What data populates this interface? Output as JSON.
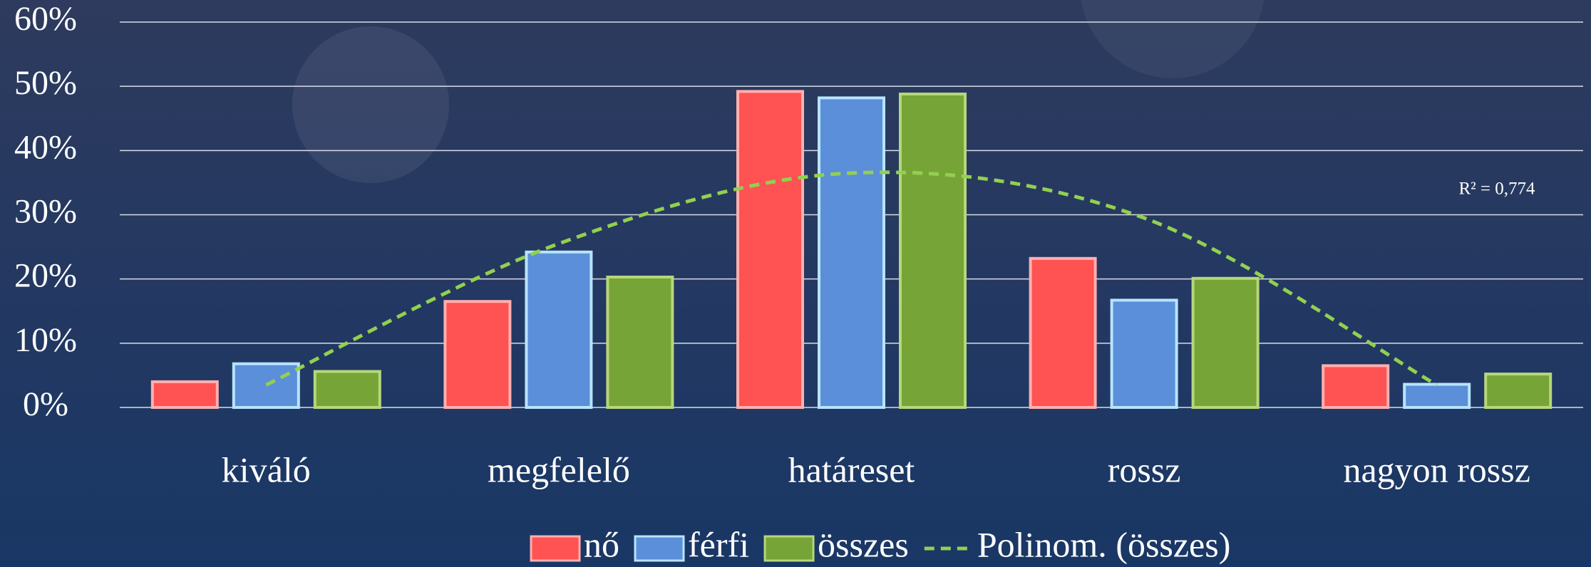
{
  "chart_data": {
    "type": "bar",
    "categories": [
      "kiváló",
      "megfelelő",
      "határeset",
      "rossz",
      "nagyon rossz"
    ],
    "series": [
      {
        "name": "nő",
        "color": "#ff5252",
        "edge": "#ffb0b0",
        "values": [
          4,
          16.5,
          49.2,
          23.2,
          6.5
        ]
      },
      {
        "name": "férfi",
        "color": "#5b8fd9",
        "edge": "#b8e4ff",
        "values": [
          6.8,
          24.2,
          48.2,
          16.7,
          3.6
        ]
      },
      {
        "name": "összes",
        "color": "#77a437",
        "edge": "#b6d77a",
        "values": [
          5.6,
          20.3,
          48.8,
          20.1,
          5.2
        ]
      }
    ],
    "trendline": {
      "name": "Polinom. (összes)",
      "color": "#92d050",
      "values": [
        3.5,
        25.5,
        36.5,
        29.5,
        3.5
      ]
    },
    "annotation": "R² = 0,774",
    "ylim": [
      0,
      60
    ],
    "yticks": [
      {
        "value": 0,
        "label": "0%"
      },
      {
        "value": 10,
        "label": "10%"
      },
      {
        "value": 20,
        "label": "20%"
      },
      {
        "value": 30,
        "label": "30%"
      },
      {
        "value": 40,
        "label": "40%"
      },
      {
        "value": 50,
        "label": "50%"
      },
      {
        "value": 60,
        "label": "60%"
      }
    ],
    "grid": true
  }
}
